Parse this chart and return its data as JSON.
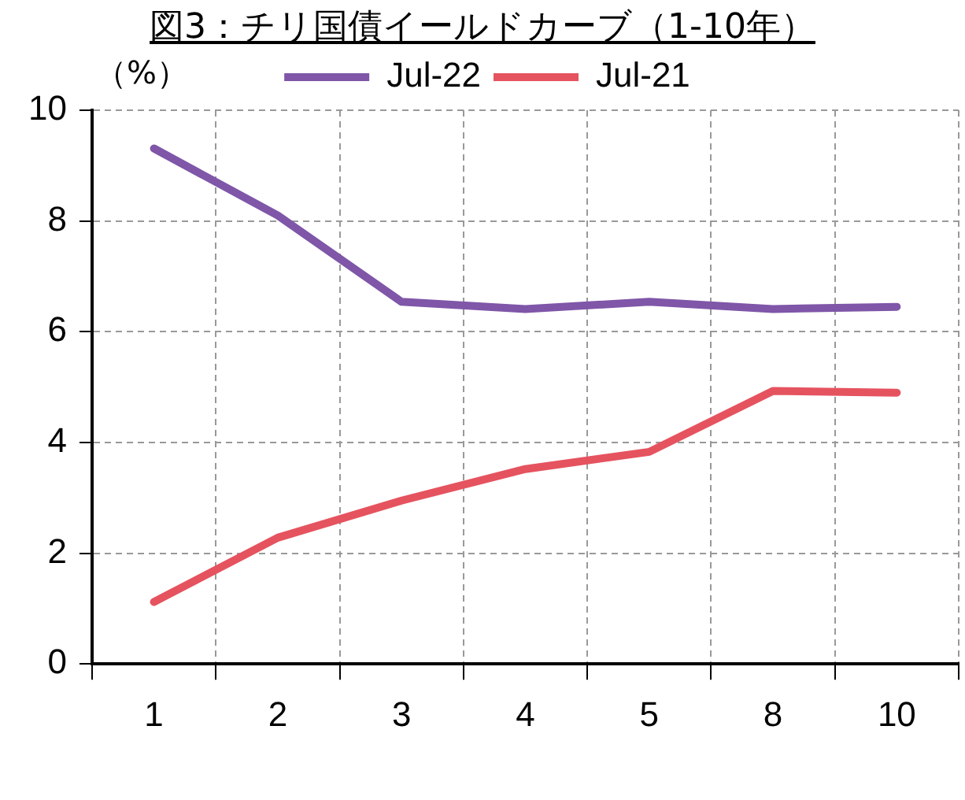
{
  "chart_data": {
    "type": "line",
    "title": "図3：チリ国債イールドカーブ（1-10年）",
    "ylabel": "（%）",
    "categories": [
      "1",
      "2",
      "3",
      "4",
      "5",
      "8",
      "10"
    ],
    "series": [
      {
        "name": "Jul-22",
        "color": "#7f56a8",
        "values": [
          9.31,
          8.1,
          6.54,
          6.41,
          6.54,
          6.41,
          6.45
        ]
      },
      {
        "name": "Jul-21",
        "color": "#e5535f",
        "values": [
          1.12,
          2.28,
          2.95,
          3.52,
          3.83,
          4.93,
          4.9
        ]
      }
    ],
    "ylim": [
      0,
      10
    ],
    "yticks": [
      0,
      2,
      4,
      6,
      8,
      10
    ],
    "grid": true,
    "legend": "top",
    "marker": "none",
    "line_style": "solid"
  }
}
